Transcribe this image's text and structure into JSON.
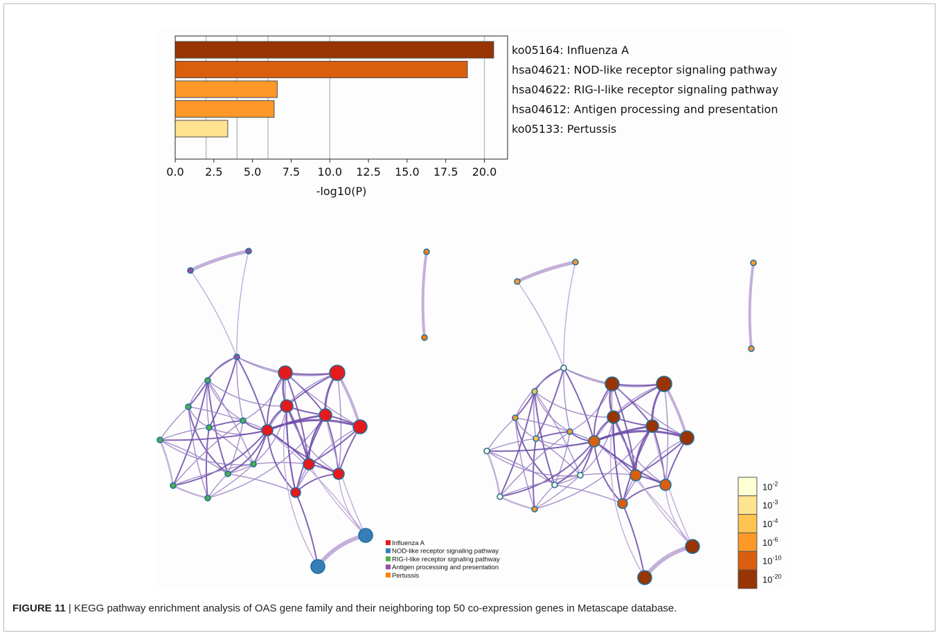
{
  "chart_data": [
    {
      "type": "bar",
      "orientation": "horizontal",
      "categories": [
        "ko05164: Influenza A",
        "hsa04621: NOD-like receptor signaling pathway",
        "hsa04622: RIG-I-like receptor signaling pathway",
        "hsa04612: Antigen processing and presentation",
        "ko05133: Pertussis"
      ],
      "values": [
        20.6,
        18.9,
        6.6,
        6.4,
        3.4
      ],
      "colors": [
        "#993404",
        "#d95f0e",
        "#fe9929",
        "#fe9929",
        "#fee391"
      ],
      "xlabel": "-log10(P)",
      "xlim": [
        0,
        21.5
      ],
      "xticks": [
        "0.0",
        "2.5",
        "5.0",
        "7.5",
        "10.0",
        "12.5",
        "15.0",
        "17.5",
        "20.0"
      ],
      "gridlines_x": [
        2,
        4,
        6,
        10,
        20
      ],
      "grid": true
    },
    {
      "type": "network",
      "legend": {
        "placement": "bottom-center",
        "entries": [
          {
            "label": "Influenza A",
            "color": "#e41a1c"
          },
          {
            "label": "NOD-like receptor signaling pathway",
            "color": "#377eb8"
          },
          {
            "label": "RIG-I-like receptor signaling pathway",
            "color": "#4daf4a"
          },
          {
            "label": "Antigen processing and presentation",
            "color": "#984ea3"
          },
          {
            "label": "Pertussis",
            "color": "#ff7f00"
          }
        ]
      }
    },
    {
      "type": "network",
      "colorbar": {
        "placement": "bottom-right",
        "entries": [
          {
            "base": "10",
            "exp": "-2",
            "color": "#ffffd4"
          },
          {
            "base": "10",
            "exp": "-3",
            "color": "#fee391"
          },
          {
            "base": "10",
            "exp": "-4",
            "color": "#fec44f"
          },
          {
            "base": "10",
            "exp": "-6",
            "color": "#fe9929"
          },
          {
            "base": "10",
            "exp": "-10",
            "color": "#d95f0e"
          },
          {
            "base": "10",
            "exp": "-20",
            "color": "#993404"
          }
        ]
      }
    }
  ],
  "caption": {
    "label": "FIGURE 11",
    "text": " | KEGG pathway enrichment analysis of OAS gene family and their neighboring top 50 co-expression genes in Metascape database."
  }
}
